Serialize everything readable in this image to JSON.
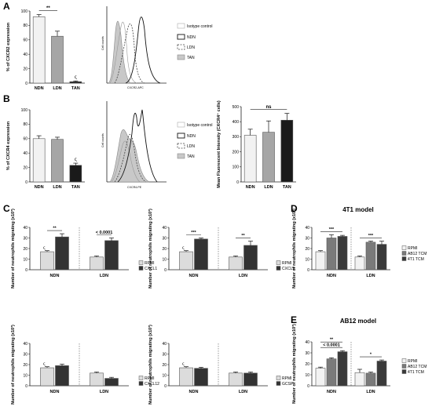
{
  "colors": {
    "NDN": "#f2f2f2",
    "LDN": "#a6a6a6",
    "TAN": "#1a1a1a",
    "RPMI": "#dcdcdc",
    "stim": "#333333",
    "AB12TCM": "#7a7a7a",
    "4T1TCM": "#3a3a3a",
    "axis": "#222222",
    "err": "#111111"
  },
  "panels": {
    "A": "A",
    "B": "B",
    "C": "C",
    "D": "D",
    "E": "E"
  },
  "histA": {
    "xlabel": "CXCR2-APC",
    "ylabel": "Cell counts"
  },
  "histB": {
    "xlabel": "CXCR4-PE",
    "ylabel": "Cell counts"
  },
  "legend_flow": [
    "Isotype control",
    "NDN",
    "LDN",
    "TAN"
  ],
  "titleD": "4T1 model",
  "titleE": "AB12 model",
  "chart_data": [
    {
      "id": "A",
      "type": "bar",
      "categories": [
        "NDN",
        "LDN",
        "TAN"
      ],
      "values": [
        92,
        65,
        2
      ],
      "errors": [
        3,
        7,
        1
      ],
      "ylabel": "% of CXCR2 expression",
      "ylim": [
        0,
        100
      ],
      "yticks": [
        0,
        20,
        40,
        60,
        80,
        100
      ],
      "annotations": [
        {
          "text": "**",
          "pair": [
            0,
            1
          ]
        },
        {
          "text": "ς",
          "bar": 2
        }
      ]
    },
    {
      "id": "B",
      "type": "bar",
      "categories": [
        "NDN",
        "LDN",
        "TAN"
      ],
      "values": [
        60,
        59,
        23
      ],
      "errors": [
        4,
        3,
        3
      ],
      "ylabel": "% of CXCR4 expression",
      "ylim": [
        0,
        100
      ],
      "yticks": [
        0,
        20,
        40,
        60,
        80,
        100
      ],
      "annotations": [
        {
          "text": "ς",
          "bar": 2
        }
      ]
    },
    {
      "id": "B2",
      "type": "bar",
      "categories": [
        "NDN",
        "LDN",
        "TAN"
      ],
      "values": [
        310,
        330,
        410
      ],
      "errors": [
        40,
        75,
        45
      ],
      "ylabel": "Mean Fluorescent Intensity (CXCR4⁺ cells)",
      "ylim": [
        0,
        500
      ],
      "yticks": [
        0,
        100,
        200,
        300,
        400,
        500
      ],
      "annotations": [
        {
          "text": "ns",
          "pair": [
            0,
            2
          ]
        }
      ]
    },
    {
      "id": "C1",
      "type": "bar",
      "groups": [
        "NDN",
        "LDN"
      ],
      "series": [
        {
          "name": "RPMI",
          "values": [
            17,
            12
          ],
          "errors": [
            1,
            1
          ]
        },
        {
          "name": "CXCL1",
          "values": [
            31,
            27.5
          ],
          "errors": [
            3,
            2.5
          ]
        }
      ],
      "ylabel": "Number of neutrophils migrating (x10³)",
      "ylim": [
        0,
        40
      ],
      "yticks": [
        0,
        10,
        20,
        30,
        40
      ],
      "annotations": [
        {
          "text": "**",
          "group": 0
        },
        {
          "text": "< 0.0001",
          "group": 1
        },
        {
          "text": "ς",
          "group": 0,
          "series": 0
        }
      ]
    },
    {
      "id": "C2",
      "type": "bar",
      "groups": [
        "NDN",
        "LDN"
      ],
      "series": [
        {
          "name": "RPMI",
          "values": [
            17,
            12
          ],
          "errors": [
            1,
            1
          ]
        },
        {
          "name": "CXCL2",
          "values": [
            29,
            23
          ],
          "errors": [
            1,
            4
          ]
        }
      ],
      "ylabel": "Number of neutrophils migrating (x10³)",
      "ylim": [
        0,
        40
      ],
      "yticks": [
        0,
        10,
        20,
        30,
        40
      ],
      "annotations": [
        {
          "text": "***",
          "group": 0
        },
        {
          "text": "**",
          "group": 1
        },
        {
          "text": "ς",
          "group": 0,
          "series": 0
        }
      ]
    },
    {
      "id": "C3",
      "type": "bar",
      "groups": [
        "NDN",
        "LDN"
      ],
      "series": [
        {
          "name": "RPMI",
          "values": [
            17,
            12
          ],
          "errors": [
            1,
            1
          ]
        },
        {
          "name": "CXCL12",
          "values": [
            19,
            7
          ],
          "errors": [
            1.5,
            1
          ]
        }
      ],
      "ylabel": "Number of neutrophils migrating (x10³)",
      "ylim": [
        0,
        40
      ],
      "yticks": [
        0,
        10,
        20,
        30,
        40
      ],
      "annotations": [
        {
          "text": "ς",
          "group": 0,
          "series": 0
        }
      ]
    },
    {
      "id": "C4",
      "type": "bar",
      "groups": [
        "NDN",
        "LDN"
      ],
      "series": [
        {
          "name": "RPMI",
          "values": [
            17,
            12
          ],
          "errors": [
            1,
            1
          ]
        },
        {
          "name": "GCSF",
          "values": [
            16.5,
            12
          ],
          "errors": [
            1,
            1
          ]
        }
      ],
      "ylabel": "Number of neutrophils migrating (x10³)",
      "ylim": [
        0,
        40
      ],
      "yticks": [
        0,
        10,
        20,
        30,
        40
      ],
      "annotations": [
        {
          "text": "ς",
          "group": 0,
          "series": 0
        }
      ]
    },
    {
      "id": "D",
      "type": "bar",
      "title": "4T1 model",
      "groups": [
        "NDN",
        "LDN"
      ],
      "series": [
        {
          "name": "RPMI",
          "values": [
            17,
            12
          ],
          "errors": [
            1,
            1
          ]
        },
        {
          "name": "AB12 TCM",
          "values": [
            30,
            26
          ],
          "errors": [
            3,
            1
          ]
        },
        {
          "name": "4T1 TCM",
          "values": [
            31.5,
            24
          ],
          "errors": [
            1,
            3
          ]
        }
      ],
      "ylabel": "Number of neutrophils migrating (x10³)",
      "ylim": [
        0,
        40
      ],
      "yticks": [
        0,
        10,
        20,
        30,
        40
      ],
      "annotations": [
        {
          "text": "***",
          "group": 0
        },
        {
          "text": "***",
          "group": 1
        }
      ]
    },
    {
      "id": "E",
      "type": "bar",
      "title": "AB12 model",
      "groups": [
        "NDN",
        "LDN"
      ],
      "series": [
        {
          "name": "RPMI",
          "values": [
            16,
            12
          ],
          "errors": [
            1,
            3
          ]
        },
        {
          "name": "AB12 TCM",
          "values": [
            24.5,
            11.5
          ],
          "errors": [
            1,
            1
          ]
        },
        {
          "name": "4T1 TCM",
          "values": [
            31,
            22.5
          ],
          "errors": [
            1,
            1
          ]
        }
      ],
      "ylabel": "Number of neutrophils migrating (x10³)",
      "ylim": [
        0,
        40
      ],
      "yticks": [
        0,
        10,
        20,
        30,
        40
      ],
      "annotations": [
        {
          "text": "< 0.0001",
          "group": 0
        },
        {
          "text": "**",
          "group": 0
        },
        {
          "text": "*",
          "group": 1
        }
      ]
    }
  ]
}
